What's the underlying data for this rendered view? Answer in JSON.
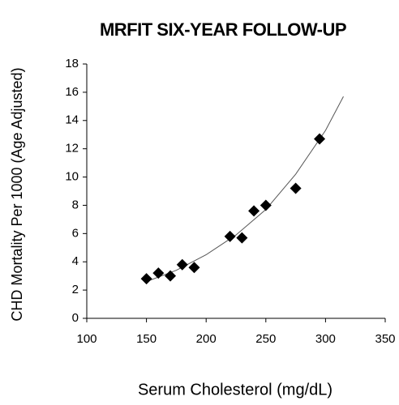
{
  "chart_data": {
    "type": "scatter",
    "title": "MRFIT SIX-YEAR FOLLOW-UP",
    "x_label": "Serum Cholesterol (mg/dL)",
    "y_label": "CHD Mortality Per 1000 (Age Adjusted)",
    "series": [
      {
        "name": "MRFIT",
        "color": "#000000",
        "x": [
          150,
          160,
          170,
          180,
          190,
          220,
          230,
          240,
          250,
          275,
          295
        ],
        "values": [
          2.8,
          3.2,
          3.0,
          3.8,
          3.6,
          5.8,
          5.7,
          7.6,
          8.0,
          9.2,
          12.7
        ]
      }
    ],
    "trendline": {
      "type": "exponential",
      "color": "#555555",
      "x": [
        150,
        175,
        200,
        225,
        250,
        275,
        300,
        315
      ],
      "values": [
        2.6,
        3.4,
        4.5,
        5.9,
        7.7,
        10.2,
        13.3,
        15.7
      ]
    },
    "xlim": [
      100,
      350
    ],
    "xticks": [
      100,
      150,
      200,
      250,
      300,
      350
    ],
    "ylim": [
      0,
      18
    ],
    "yticks": [
      0,
      2,
      4,
      6,
      8,
      10,
      12,
      14,
      16,
      18
    ],
    "grid": false
  }
}
